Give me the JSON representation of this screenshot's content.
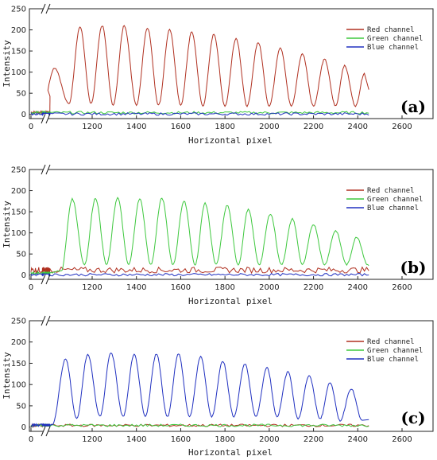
{
  "chart_data": [
    {
      "type": "line",
      "panel_label": "(a)",
      "xlabel": "Horizontal pixel",
      "ylabel": "Intensity",
      "xlim": [
        0,
        2800
      ],
      "ylim": [
        -10,
        250
      ],
      "axis_break_after": 0,
      "x_data_range": [
        0,
        2450
      ],
      "x_ticks": [
        0,
        1200,
        1400,
        1600,
        1800,
        2000,
        2200,
        2400,
        2600
      ],
      "x_tick_labels": [
        "0",
        "1200",
        "1400",
        "1600",
        "1800",
        "2000",
        "2200",
        "2400",
        "2600"
      ],
      "y_ticks": [
        0,
        50,
        100,
        150,
        200,
        250
      ],
      "y_tick_labels": [
        "0",
        "50",
        "100",
        "150",
        "200",
        "250"
      ],
      "legend_position": "top-right",
      "series": [
        {
          "name": "Red channel",
          "color": "#b03020",
          "peaks": [
            [
              1030,
              110
            ],
            [
              1145,
              207
            ],
            [
              1245,
              210
            ],
            [
              1345,
              210
            ],
            [
              1450,
              205
            ],
            [
              1550,
              200
            ],
            [
              1650,
              195
            ],
            [
              1750,
              190
            ],
            [
              1850,
              180
            ],
            [
              1950,
              170
            ],
            [
              2050,
              158
            ],
            [
              2150,
              143
            ],
            [
              2250,
              130
            ],
            [
              2340,
              115
            ],
            [
              2430,
              97
            ]
          ],
          "troughs": [
            [
              1095,
              25
            ],
            [
              1195,
              25
            ],
            [
              1295,
              22
            ],
            [
              1400,
              22
            ],
            [
              1500,
              22
            ],
            [
              1600,
              22
            ],
            [
              1700,
              20
            ],
            [
              1800,
              20
            ],
            [
              1900,
              20
            ],
            [
              2000,
              20
            ],
            [
              2100,
              20
            ],
            [
              2200,
              20
            ],
            [
              2300,
              20
            ],
            [
              2390,
              20
            ]
          ]
        },
        {
          "name": "Green channel",
          "color": "#3ec83e",
          "peaks": [],
          "troughs": []
        },
        {
          "name": "Blue channel",
          "color": "#2030c0",
          "peaks": [],
          "troughs": []
        }
      ]
    },
    {
      "type": "line",
      "panel_label": "(b)",
      "xlabel": "Horizontal pixel",
      "ylabel": "Intensity",
      "xlim": [
        0,
        2800
      ],
      "ylim": [
        -10,
        250
      ],
      "axis_break_after": 0,
      "x_data_range": [
        0,
        2450
      ],
      "x_ticks": [
        0,
        1200,
        1400,
        1600,
        1800,
        2000,
        2200,
        2400,
        2600
      ],
      "x_tick_labels": [
        "0",
        "1200",
        "1400",
        "1600",
        "1800",
        "2000",
        "2200",
        "2400",
        "2600"
      ],
      "y_ticks": [
        0,
        50,
        100,
        150,
        200,
        250
      ],
      "y_tick_labels": [
        "0",
        "50",
        "100",
        "150",
        "200",
        "250"
      ],
      "legend_position": "top-right",
      "series": [
        {
          "name": "Red channel",
          "color": "#b03020",
          "peaks": [],
          "troughs": []
        },
        {
          "name": "Green channel",
          "color": "#3ec83e",
          "peaks": [
            [
              1110,
              180
            ],
            [
              1215,
              182
            ],
            [
              1315,
              183
            ],
            [
              1415,
              180
            ],
            [
              1515,
              182
            ],
            [
              1615,
              175
            ],
            [
              1710,
              170
            ],
            [
              1810,
              165
            ],
            [
              1905,
              155
            ],
            [
              2005,
              145
            ],
            [
              2105,
              133
            ],
            [
              2200,
              120
            ],
            [
              2300,
              105
            ],
            [
              2395,
              90
            ]
          ],
          "troughs": [
            [
              1060,
              10
            ],
            [
              1165,
              25
            ],
            [
              1265,
              25
            ],
            [
              1365,
              25
            ],
            [
              1465,
              25
            ],
            [
              1565,
              25
            ],
            [
              1665,
              25
            ],
            [
              1760,
              25
            ],
            [
              1860,
              25
            ],
            [
              1955,
              25
            ],
            [
              2055,
              25
            ],
            [
              2150,
              25
            ],
            [
              2250,
              25
            ],
            [
              2350,
              25
            ],
            [
              2445,
              25
            ]
          ]
        },
        {
          "name": "Blue channel",
          "color": "#2030c0",
          "peaks": [],
          "troughs": []
        }
      ]
    },
    {
      "type": "line",
      "panel_label": "(c)",
      "xlabel": "Horizontal pixel",
      "ylabel": "Intensity",
      "xlim": [
        0,
        2800
      ],
      "ylim": [
        -10,
        250
      ],
      "axis_break_after": 0,
      "x_data_range": [
        0,
        2450
      ],
      "x_ticks": [
        0,
        1200,
        1400,
        1600,
        1800,
        2000,
        2200,
        2400,
        2600
      ],
      "x_tick_labels": [
        "0",
        "1200",
        "1400",
        "1600",
        "1800",
        "2000",
        "2200",
        "2400",
        "2600"
      ],
      "y_ticks": [
        0,
        50,
        100,
        150,
        200,
        250
      ],
      "y_tick_labels": [
        "0",
        "50",
        "100",
        "150",
        "200",
        "250"
      ],
      "legend_position": "top-right",
      "series": [
        {
          "name": "Red channel",
          "color": "#b03020",
          "peaks": [],
          "troughs": []
        },
        {
          "name": "Green channel",
          "color": "#3ec83e",
          "peaks": [],
          "troughs": []
        },
        {
          "name": "Blue channel",
          "color": "#2030c0",
          "peaks": [
            [
              1080,
              160
            ],
            [
              1180,
              170
            ],
            [
              1285,
              175
            ],
            [
              1390,
              170
            ],
            [
              1490,
              172
            ],
            [
              1590,
              172
            ],
            [
              1690,
              165
            ],
            [
              1790,
              155
            ],
            [
              1890,
              148
            ],
            [
              1990,
              140
            ],
            [
              2085,
              130
            ],
            [
              2180,
              120
            ],
            [
              2275,
              105
            ],
            [
              2370,
              90
            ]
          ],
          "troughs": [
            [
              1130,
              20
            ],
            [
              1235,
              25
            ],
            [
              1340,
              25
            ],
            [
              1440,
              25
            ],
            [
              1540,
              25
            ],
            [
              1640,
              25
            ],
            [
              1740,
              25
            ],
            [
              1840,
              25
            ],
            [
              1940,
              25
            ],
            [
              2035,
              25
            ],
            [
              2130,
              20
            ],
            [
              2230,
              20
            ],
            [
              2320,
              15
            ],
            [
              2420,
              15
            ]
          ]
        }
      ]
    }
  ]
}
